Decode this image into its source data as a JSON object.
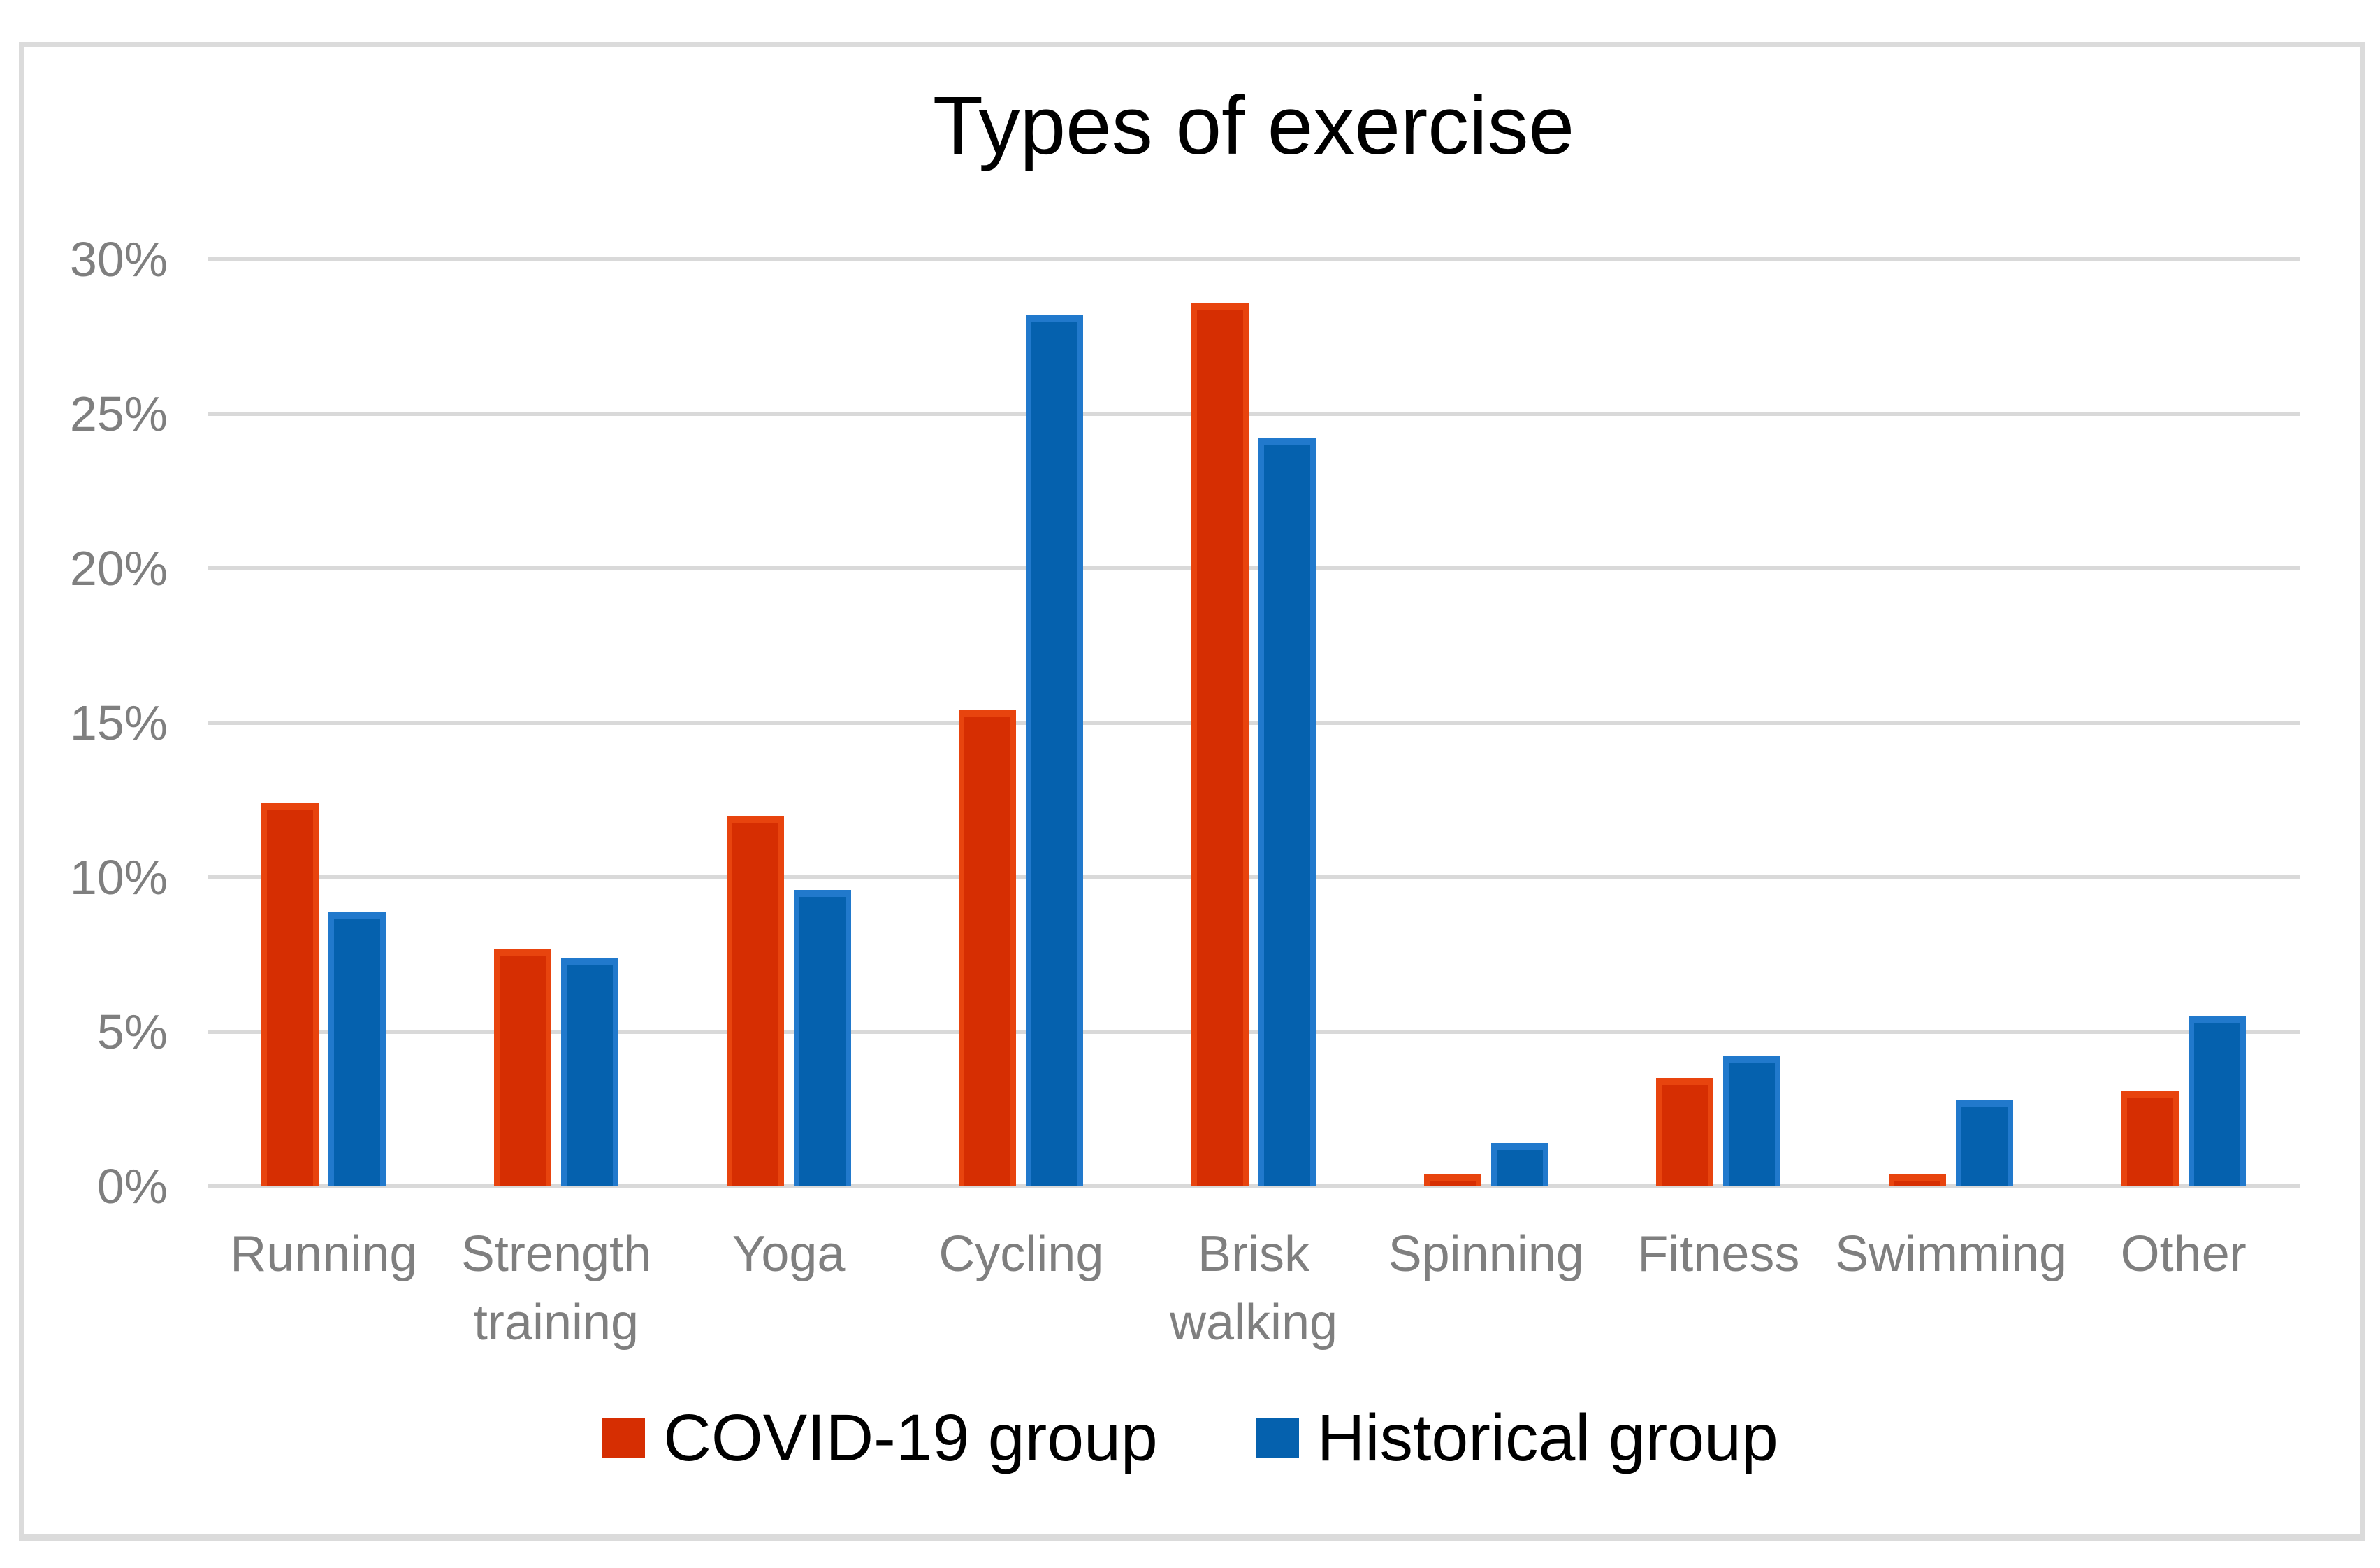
{
  "figure": {
    "title": "Types of exercise"
  },
  "chart_data": {
    "type": "bar",
    "title": "Types of exercise",
    "xlabel": "",
    "ylabel": "",
    "categories": [
      "Running",
      "Strength training",
      "Yoga",
      "Cycling",
      "Brisk walking",
      "Spinning",
      "Fitness",
      "Swimming",
      "Other"
    ],
    "series": [
      {
        "name": "COVID-19 group",
        "color": "#D62E02",
        "color_light": "#E8440E",
        "values": [
          12.4,
          7.7,
          12.0,
          15.4,
          28.6,
          0.4,
          3.5,
          0.4,
          3.1
        ]
      },
      {
        "name": "Historical group",
        "color": "#0561AE",
        "color_light": "#2179CC",
        "values": [
          8.9,
          7.4,
          9.6,
          28.2,
          24.2,
          1.4,
          4.2,
          2.8,
          5.5
        ]
      }
    ],
    "y_axis": {
      "min": 0,
      "max": 30,
      "step": 5,
      "tick_labels": [
        "0%",
        "5%",
        "10%",
        "15%",
        "20%",
        "25%",
        "30%"
      ]
    },
    "grid": true,
    "legend_position": "bottom",
    "colors": {
      "gridline": "#D9D9D9",
      "axis_label": "#7F7F7F",
      "title": "#000000",
      "frame_border": "#DBDBDB",
      "background": "#FFFFFF"
    }
  }
}
